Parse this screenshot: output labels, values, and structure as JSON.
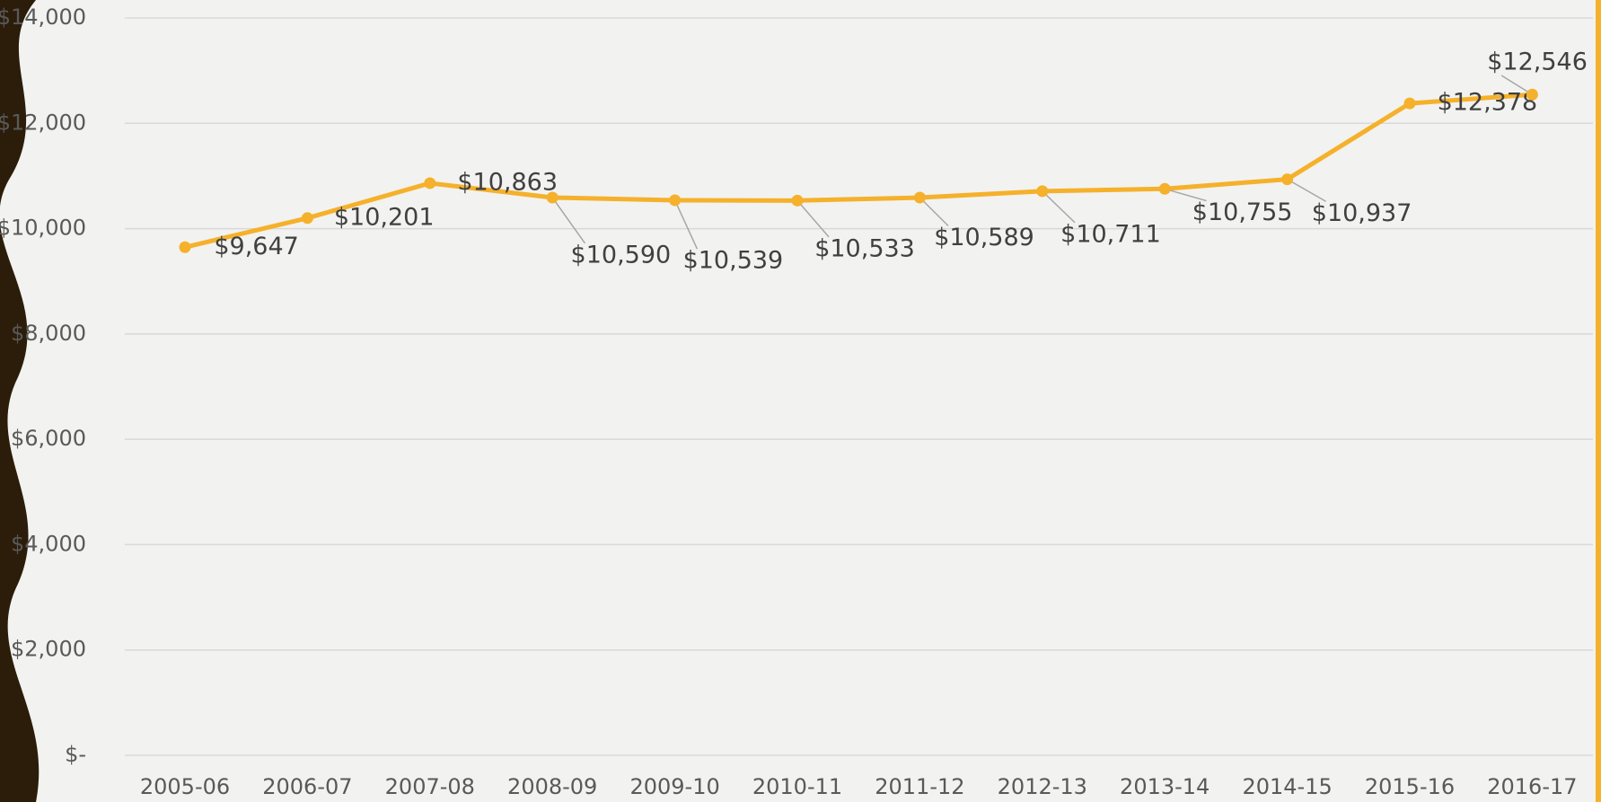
{
  "chart_data": {
    "type": "line",
    "categories": [
      "2005-06",
      "2006-07",
      "2007-08",
      "2008-09",
      "2009-10",
      "2010-11",
      "2011-12",
      "2012-13",
      "2013-14",
      "2014-15",
      "2015-16",
      "2016-17"
    ],
    "values": [
      9647,
      10201,
      10863,
      10590,
      10539,
      10533,
      10589,
      10711,
      10755,
      10937,
      12378,
      12546
    ],
    "value_labels": [
      "$9,647",
      "$10,201",
      "$10,863",
      "$10,590",
      "$10,539",
      "$10,533",
      "$10,589",
      "$10,711",
      "$10,755",
      "$10,937",
      "$12,378",
      "$12,546"
    ],
    "color": "#f5b12b",
    "ylim": [
      0,
      14000
    ],
    "yticks": [
      {
        "value": 0,
        "label": "$-"
      },
      {
        "value": 2000,
        "label": "$2,000"
      },
      {
        "value": 4000,
        "label": "$4,000"
      },
      {
        "value": 6000,
        "label": "$6,000"
      },
      {
        "value": 8000,
        "label": "$8,000"
      },
      {
        "value": 10000,
        "label": "$10,000"
      },
      {
        "value": 12000,
        "label": "$12,000"
      },
      {
        "value": 14000,
        "label": "$14,000"
      }
    ],
    "grid": true
  }
}
